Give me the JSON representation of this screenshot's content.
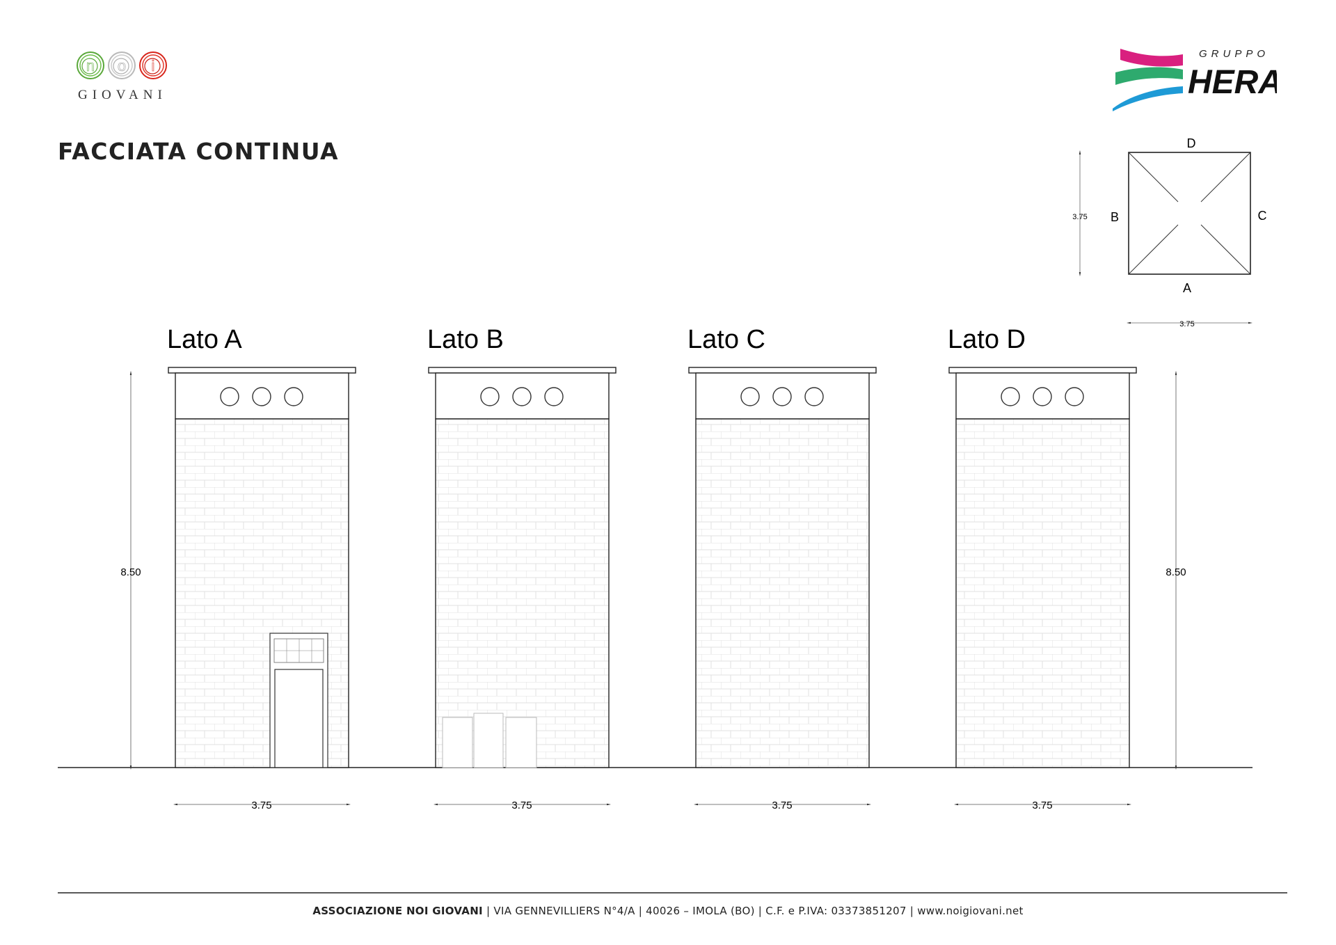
{
  "header": {
    "title": "FACCIATA CONTINUA",
    "logo_left": {
      "text": "GIOVANI",
      "letters": [
        "n",
        "o",
        "i"
      ],
      "colors": [
        "#5aa83a",
        "#b9b9b9",
        "#d8261c"
      ]
    },
    "logo_right": {
      "small": "GRUPPO",
      "big": "HERA",
      "colors": [
        "#d9207f",
        "#2eaa6e",
        "#1e9ad6"
      ]
    }
  },
  "plan": {
    "labels": {
      "top": "D",
      "left": "B",
      "right": "C",
      "bottom": "A"
    },
    "side_dim": "3.75",
    "bottom_dim": "3.75"
  },
  "elevations": [
    {
      "label": "Lato A",
      "width_dim": "3.75",
      "feature": "door"
    },
    {
      "label": "Lato B",
      "width_dim": "3.75",
      "feature": "panels"
    },
    {
      "label": "Lato C",
      "width_dim": "3.75",
      "feature": "none"
    },
    {
      "label": "Lato D",
      "width_dim": "3.75",
      "feature": "none"
    }
  ],
  "height_dim_left": "8.50",
  "height_dim_right": "8.50",
  "footer": {
    "org": "ASSOCIAZIONE NOI GIOVANI",
    "address": " | VIA GENNEVILLIERS N°4/A | 40026 – IMOLA (BO) | C.F. e P.IVA: 03373851207 | www.noigiovani.net"
  }
}
